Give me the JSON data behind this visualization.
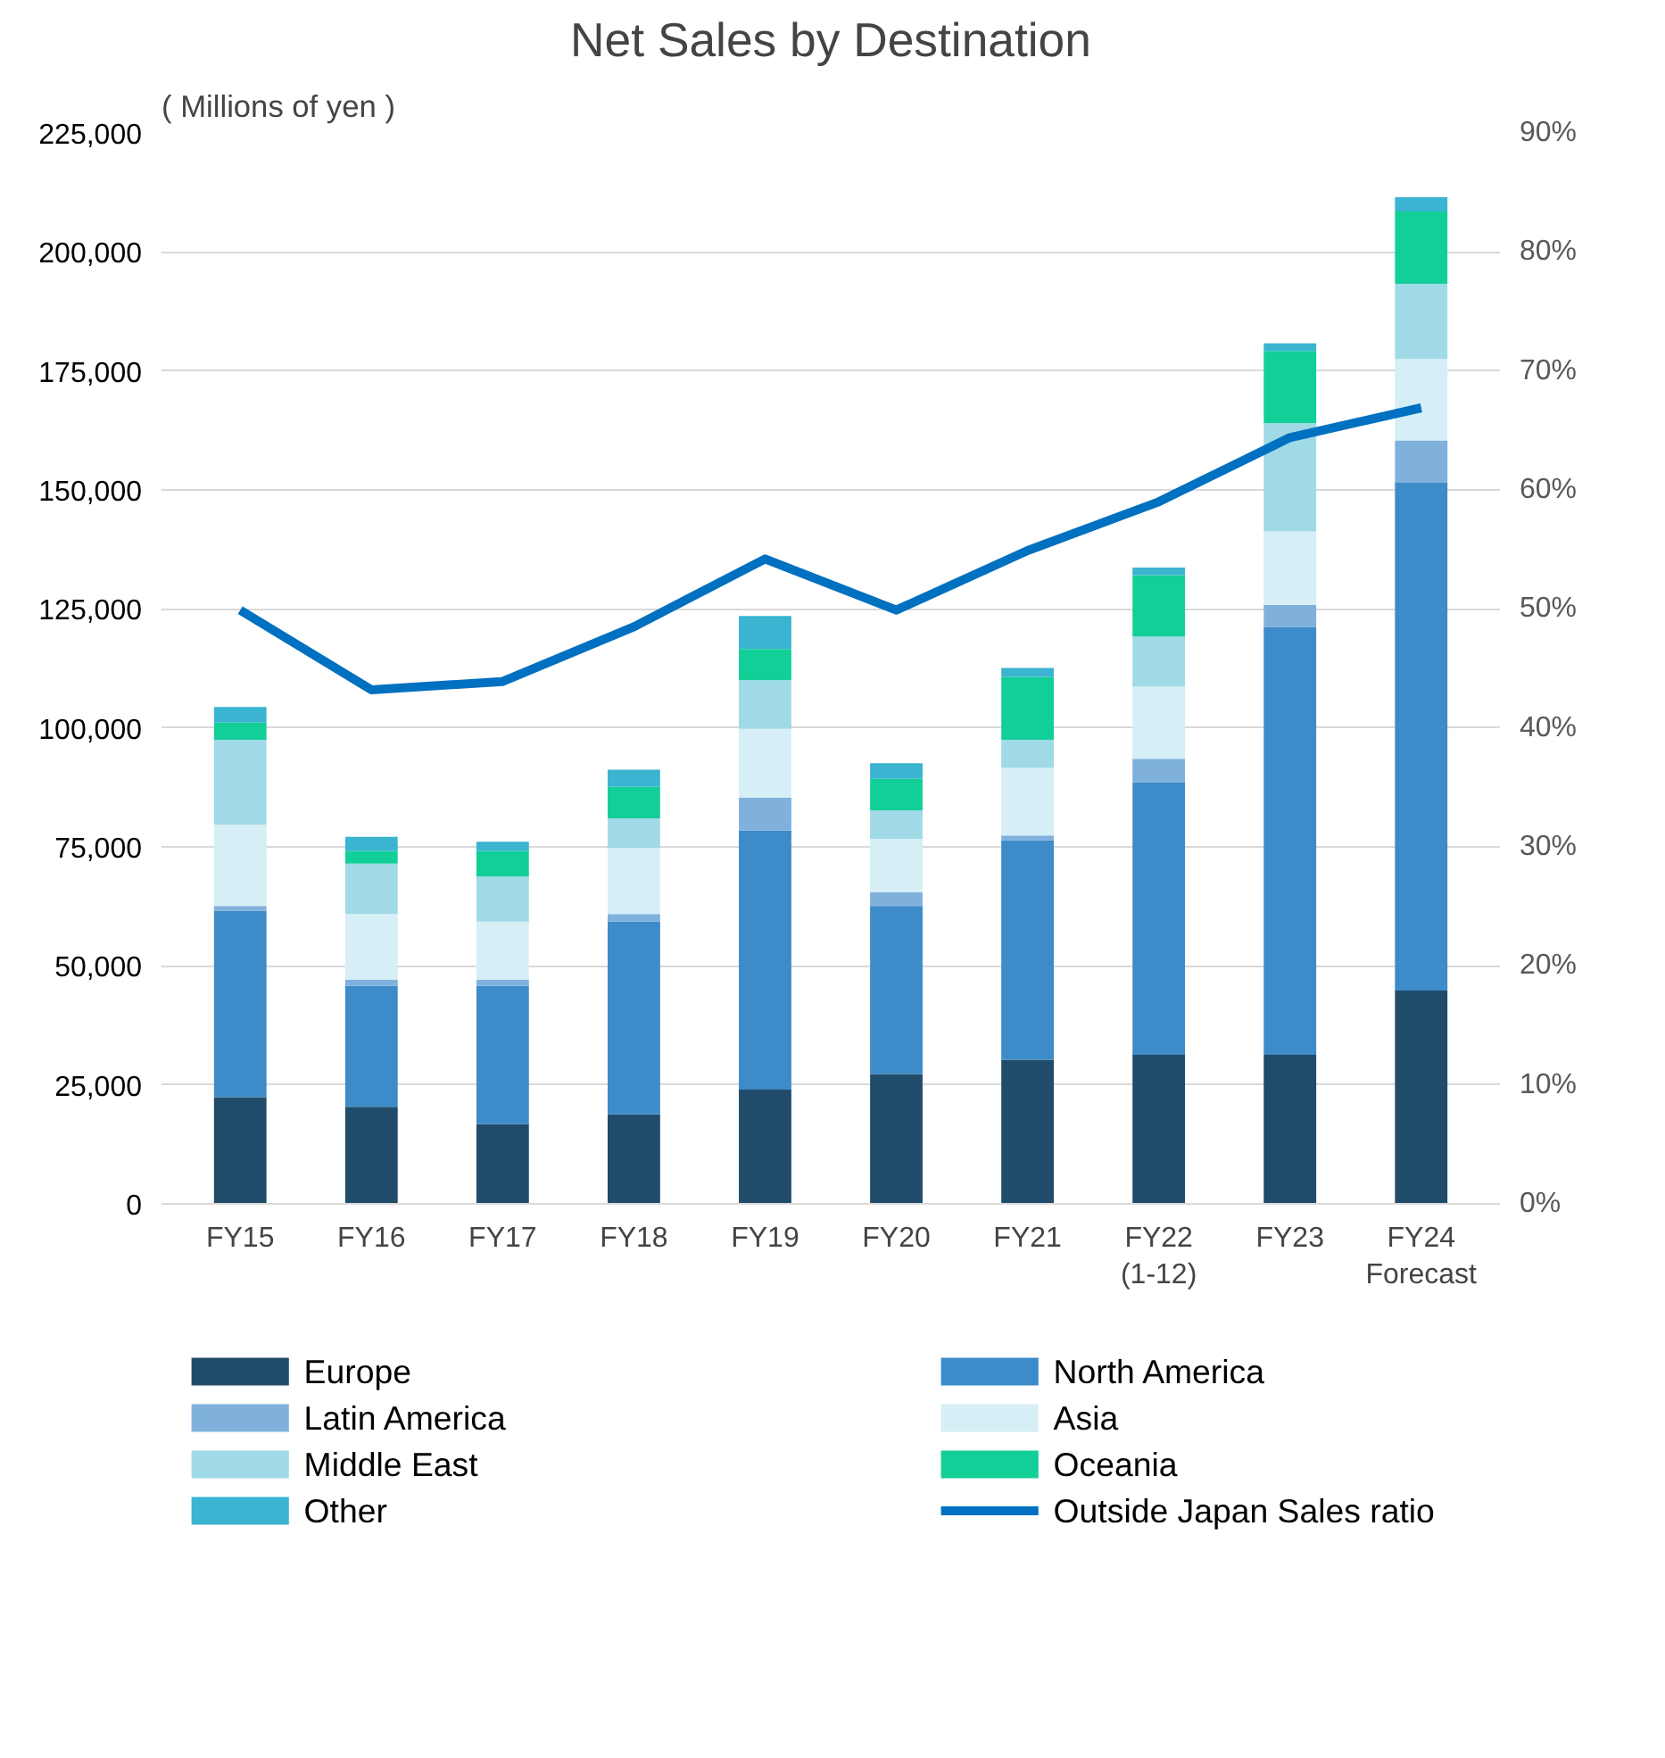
{
  "chart_data": {
    "type": "bar",
    "title": "Net Sales by Destination",
    "ylabel": "( Millions of yen )",
    "stacked": true,
    "categories": [
      "FY15",
      "FY16",
      "FY17",
      "FY18",
      "FY19",
      "FY20",
      "FY21",
      "FY22\n(1-12)",
      "FY23",
      "FY24\nForecast"
    ],
    "series": [
      {
        "name": "Europe",
        "color": "#214b6b",
        "values": [
          22400,
          20400,
          16800,
          18800,
          24000,
          27300,
          30300,
          31300,
          31300,
          44800
        ]
      },
      {
        "name": "North America",
        "color": "#3d8bc9",
        "values": [
          39200,
          25400,
          29000,
          40500,
          54400,
          35300,
          46100,
          57300,
          89900,
          106700
        ]
      },
      {
        "name": "Latin America",
        "color": "#7fb1dc",
        "values": [
          1000,
          1300,
          1300,
          1600,
          6900,
          2900,
          1000,
          4900,
          4600,
          8900
        ]
      },
      {
        "name": "Asia",
        "color": "#d6eef5",
        "values": [
          17100,
          13800,
          12200,
          13900,
          14500,
          11200,
          14200,
          15200,
          15500,
          17100
        ]
      },
      {
        "name": "Middle East",
        "color": "#a0dae6",
        "values": [
          17800,
          10600,
          9500,
          6200,
          10200,
          6000,
          5900,
          10500,
          22700,
          15800
        ]
      },
      {
        "name": "Oceania",
        "color": "#12cf98",
        "values": [
          3600,
          2600,
          5300,
          6600,
          6600,
          6600,
          13200,
          12900,
          15200,
          15200
        ]
      },
      {
        "name": "Other",
        "color": "#3ab4d0",
        "values": [
          3300,
          3000,
          2000,
          3600,
          6900,
          3300,
          1900,
          1600,
          1600,
          3000
        ]
      },
      {
        "name": "Outside Japan Sales ratio",
        "type": "line",
        "axis": "y2",
        "color": "#0070c0",
        "values": [
          49.9,
          43.2,
          43.9,
          48.5,
          54.2,
          49.9,
          54.9,
          59.0,
          64.4,
          66.9
        ]
      }
    ],
    "ylim": [
      0,
      225000
    ],
    "yticks": [
      0,
      {
        "value": 25000,
        "label": "25,000"
      },
      {
        "value": 50000,
        "label": "50,000"
      },
      {
        "value": 75000,
        "label": "75,000"
      },
      {
        "value": 100000,
        "label": "100,000"
      },
      {
        "value": 125000,
        "label": "125,000"
      },
      {
        "value": 150000,
        "label": "150,000"
      },
      {
        "value": 175000,
        "label": "175,000"
      },
      {
        "value": 200000,
        "label": "200,000"
      },
      {
        "value": 225000,
        "label": "225,000"
      }
    ],
    "y2lim": [
      0,
      90
    ],
    "y2ticks": [
      {
        "value": 0,
        "label": "0%"
      },
      {
        "value": 10,
        "label": "10%"
      },
      {
        "value": 20,
        "label": "20%"
      },
      {
        "value": 30,
        "label": "30%"
      },
      {
        "value": 40,
        "label": "40%"
      },
      {
        "value": 50,
        "label": "50%"
      },
      {
        "value": 60,
        "label": "60%"
      },
      {
        "value": 70,
        "label": "70%"
      },
      {
        "value": 80,
        "label": "80%"
      },
      {
        "value": 90,
        "label": "90%"
      }
    ],
    "grid": "y",
    "legend": "bottom",
    "marker": "none",
    "line_style": "solid"
  }
}
